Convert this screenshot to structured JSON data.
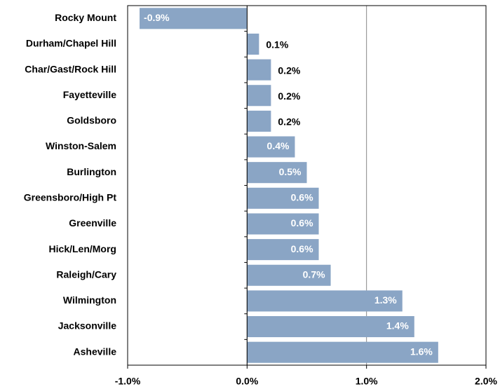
{
  "chart_data": {
    "type": "bar",
    "orientation": "horizontal",
    "categories": [
      "Rocky Mount",
      "Durham/Chapel Hill",
      "Char/Gast/Rock Hill",
      "Fayetteville",
      "Goldsboro",
      "Winston-Salem",
      "Burlington",
      "Greensboro/High Pt",
      "Greenville",
      "Hick/Len/Morg",
      "Raleigh/Cary",
      "Wilmington",
      "Jacksonville",
      "Asheville"
    ],
    "values": [
      -0.9,
      0.1,
      0.2,
      0.2,
      0.2,
      0.4,
      0.5,
      0.6,
      0.6,
      0.6,
      0.7,
      1.3,
      1.4,
      1.6
    ],
    "value_labels": [
      "-0.9%",
      "0.1%",
      "0.2%",
      "0.2%",
      "0.2%",
      "0.4%",
      "0.5%",
      "0.6%",
      "0.6%",
      "0.6%",
      "0.7%",
      "1.3%",
      "1.4%",
      "1.6%"
    ],
    "color": "#8aa5c5",
    "xlim": [
      -1,
      2
    ],
    "xticks": [
      {
        "value": -1,
        "label": "-1.0%"
      },
      {
        "value": 0,
        "label": "0.0%"
      },
      {
        "value": 1,
        "label": "1.0%"
      },
      {
        "value": 2,
        "label": "2.0%"
      }
    ],
    "grid": true
  }
}
